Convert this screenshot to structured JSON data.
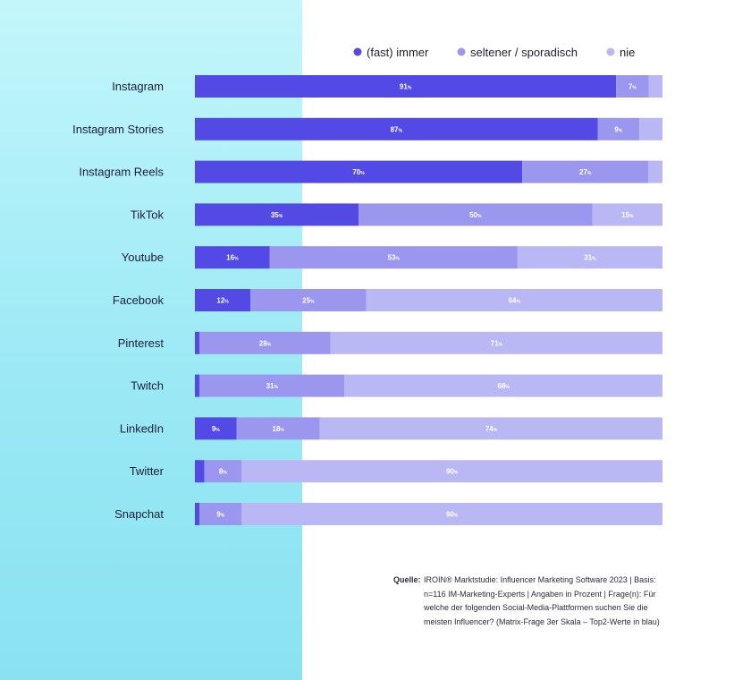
{
  "chart_data": {
    "type": "bar",
    "orientation": "horizontal",
    "stacked": true,
    "percent_suffix": "%",
    "categories": [
      "Instagram",
      "Instagram Stories",
      "Instagram Reels",
      "TikTok",
      "Youtube",
      "Facebook",
      "Pinterest",
      "Twitch",
      "LinkedIn",
      "Twitter",
      "Snapchat"
    ],
    "series": [
      {
        "name": "(fast) immer",
        "color": "#534ae6",
        "values": [
          91,
          87,
          70,
          35,
          16,
          12,
          1,
          1,
          9,
          2,
          1
        ],
        "labels": [
          "91",
          "87",
          "70",
          "35",
          "16",
          "12",
          "",
          "",
          "9",
          "",
          ""
        ]
      },
      {
        "name": "seltener / sporadisch",
        "color": "#9b96ee",
        "values": [
          7,
          9,
          27,
          50,
          53,
          25,
          28,
          31,
          18,
          8,
          9
        ],
        "labels": [
          "7",
          "9",
          "27",
          "50",
          "53",
          "25",
          "28",
          "31",
          "18",
          "8",
          "9"
        ]
      },
      {
        "name": "nie",
        "color": "#bab7f5",
        "values": [
          3,
          5,
          3,
          15,
          31,
          64,
          71,
          68,
          74,
          90,
          90
        ],
        "labels": [
          "",
          "",
          "",
          "15",
          "31",
          "64",
          "71",
          "68",
          "74",
          "90",
          "90"
        ]
      }
    ],
    "xlim": [
      0,
      100
    ],
    "legend": "top-right"
  },
  "source": {
    "label": "Quelle:",
    "text": "IROIN® Marktstudie: Influencer Marketing Software 2023 | Basis: n=116 IM-Marketing-Experts | Angaben in Prozent | Frage(n): Für welche der folgenden Social-Media-Plattformen suchen Sie die meisten Influencer? (Matrix-Frage 3er Skala – Top2-Werte in blau)"
  }
}
